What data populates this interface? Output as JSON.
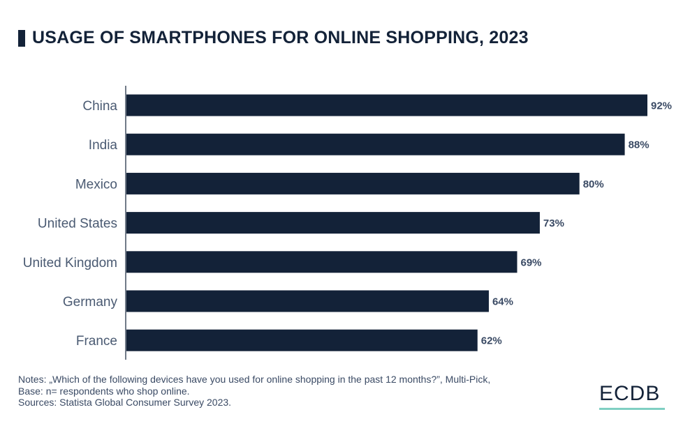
{
  "title": "USAGE OF SMARTPHONES FOR ONLINE SHOPPING, 2023",
  "notes": [
    "Notes: „Which of the following devices have you used for online shopping in the past 12 months?”, Multi-Pick,",
    "Base: n= respondents who shop online.",
    "Sources: Statista Global Consumer Survey 2023."
  ],
  "logo": "ECDB",
  "colors": {
    "bar": "#132238",
    "axis": "#132238",
    "logo_underline": "#7fcfc2"
  },
  "chart_data": {
    "type": "bar",
    "orientation": "horizontal",
    "categories": [
      "China",
      "India",
      "Mexico",
      "United States",
      "United Kingdom",
      "Germany",
      "France"
    ],
    "values": [
      92,
      88,
      80,
      73,
      69,
      64,
      62
    ],
    "value_labels": [
      "92%",
      "88%",
      "80%",
      "73%",
      "69%",
      "64%",
      "62%"
    ],
    "unit": "%",
    "xlim": [
      0,
      92
    ],
    "grid": false,
    "legend": "none"
  }
}
